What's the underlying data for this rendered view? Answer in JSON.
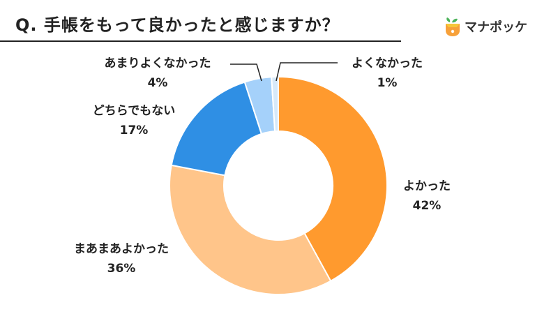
{
  "title": "Q.  手帳をもって良かったと感じますか？",
  "brand": {
    "name": "マナポッケ",
    "colors": {
      "orange": "#F7A13A",
      "yellow": "#F6C73A",
      "green": "#4CB35B"
    }
  },
  "chart_data": {
    "type": "pie",
    "donut": true,
    "categories": [
      "よかった",
      "まあまあよかった",
      "どちらでもない",
      "あまりよくなかった",
      "よくなかった"
    ],
    "values": [
      42,
      36,
      17,
      4,
      1
    ],
    "percent_labels": [
      "42%",
      "36%",
      "17%",
      "4%",
      "1%"
    ],
    "colors": [
      "#FF9A2E",
      "#FFC58A",
      "#2F8FE4",
      "#A5D1FA",
      "#D7E9F9"
    ],
    "start": "12 o'clock",
    "direction": "clockwise"
  }
}
